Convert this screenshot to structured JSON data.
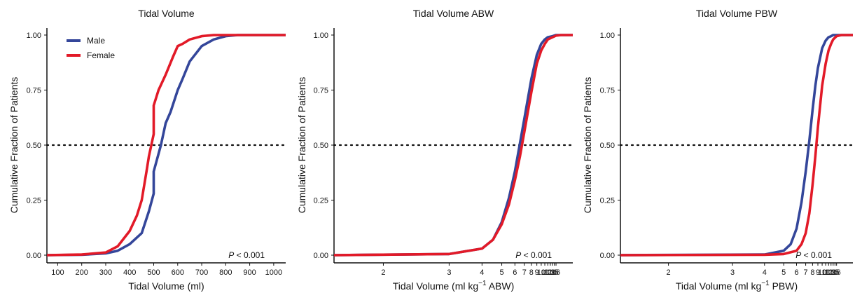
{
  "colors": {
    "male": "#34469a",
    "female": "#e21a28",
    "axis": "#111111"
  },
  "legend": {
    "items": [
      {
        "label": "Male",
        "color": "#34469a"
      },
      {
        "label": "Female",
        "color": "#e21a28"
      }
    ]
  },
  "chart_data": [
    {
      "type": "line",
      "title": "Tidal Volume",
      "xlabel": "Tidal Volume (ml)",
      "ylabel": "Cumulative Fraction of Patients",
      "x_scale": "linear",
      "xlim": [
        55,
        1050
      ],
      "ylim": [
        -0.02,
        1.05
      ],
      "x_ticks": [
        100,
        200,
        300,
        400,
        500,
        600,
        700,
        800,
        900,
        1000
      ],
      "y_ticks": [
        "0.00",
        "0.25",
        "0.50",
        "0.75",
        "1.00"
      ],
      "reference_line": {
        "y": 0.5,
        "style": "dotted"
      },
      "annotation": {
        "p": "P",
        "rest": " < 0.001"
      },
      "legend": "top-left",
      "series": [
        {
          "name": "Male",
          "color": "#34469a",
          "x": [
            55,
            200,
            300,
            350,
            400,
            450,
            480,
            500,
            500,
            530,
            550,
            570,
            600,
            620,
            650,
            700,
            750,
            800,
            850,
            900,
            1050
          ],
          "y": [
            0,
            0.002,
            0.008,
            0.02,
            0.05,
            0.1,
            0.2,
            0.28,
            0.38,
            0.5,
            0.6,
            0.65,
            0.75,
            0.8,
            0.88,
            0.95,
            0.98,
            0.995,
            1.0,
            1.0,
            1.0
          ]
        },
        {
          "name": "Female",
          "color": "#e21a28",
          "x": [
            55,
            200,
            300,
            350,
            400,
            430,
            450,
            470,
            480,
            500,
            500,
            520,
            550,
            580,
            600,
            620,
            650,
            700,
            750,
            800,
            1050
          ],
          "y": [
            0,
            0.003,
            0.012,
            0.04,
            0.11,
            0.18,
            0.25,
            0.38,
            0.45,
            0.55,
            0.68,
            0.75,
            0.82,
            0.9,
            0.95,
            0.96,
            0.98,
            0.995,
            1.0,
            1.0,
            1.0
          ]
        }
      ]
    },
    {
      "type": "line",
      "title": "Tidal Volume ABW",
      "xlabel_parts": [
        "Tidal Volume (ml kg",
        "−1",
        " ABW)"
      ],
      "ylabel": "Cumulative Fraction of Patients",
      "x_scale": "reciprocal",
      "xlim": [
        1.6,
        50
      ],
      "ylim": [
        -0.02,
        1.05
      ],
      "x_ticks": [
        2,
        3,
        4,
        5,
        6,
        7,
        8,
        9,
        10,
        11,
        12,
        13,
        14,
        15,
        16
      ],
      "y_ticks": [
        "0.00",
        "0.25",
        "0.50",
        "0.75",
        "1.00"
      ],
      "reference_line": {
        "y": 0.5,
        "style": "dotted"
      },
      "annotation": {
        "p": "P",
        "rest": " < 0.001"
      },
      "series": [
        {
          "name": "Male",
          "color": "#34469a",
          "x": [
            1.6,
            3,
            4,
            4.5,
            5,
            5.5,
            6,
            6.5,
            7,
            8,
            9,
            10,
            11,
            12,
            14,
            16,
            20,
            30,
            50
          ],
          "y": [
            0,
            0.005,
            0.03,
            0.07,
            0.15,
            0.26,
            0.38,
            0.51,
            0.62,
            0.8,
            0.91,
            0.96,
            0.98,
            0.99,
            0.995,
            1.0,
            1.0,
            1.0,
            1.0
          ]
        },
        {
          "name": "Female",
          "color": "#e21a28",
          "x": [
            1.6,
            3,
            4,
            4.5,
            5,
            5.5,
            6,
            6.5,
            7,
            8,
            9,
            10,
            11,
            12,
            14,
            16,
            20,
            30,
            50
          ],
          "y": [
            0,
            0.005,
            0.03,
            0.07,
            0.14,
            0.23,
            0.34,
            0.45,
            0.56,
            0.74,
            0.87,
            0.93,
            0.96,
            0.98,
            0.99,
            0.997,
            1.0,
            1.0,
            1.0
          ]
        }
      ]
    },
    {
      "type": "line",
      "title": "Tidal Volume PBW",
      "xlabel_parts": [
        "Tidal Volume (ml kg",
        "−1",
        " PBW)"
      ],
      "ylabel": "Cumulative Fraction of Patients",
      "x_scale": "reciprocal",
      "xlim": [
        1.6,
        50
      ],
      "ylim": [
        -0.02,
        1.05
      ],
      "x_ticks": [
        2,
        3,
        4,
        5,
        6,
        7,
        8,
        9,
        10,
        11,
        12,
        13,
        14,
        15,
        16
      ],
      "y_ticks": [
        "0.00",
        "0.25",
        "0.50",
        "0.75",
        "1.00"
      ],
      "reference_line": {
        "y": 0.5,
        "style": "dotted"
      },
      "annotation": {
        "p": "P",
        "rest": " < 0.001"
      },
      "series": [
        {
          "name": "Male",
          "color": "#34469a",
          "x": [
            1.6,
            4,
            5,
            5.5,
            6,
            6.5,
            7,
            7.5,
            8,
            8.5,
            9,
            10,
            11,
            12,
            13,
            14,
            16,
            20,
            50
          ],
          "y": [
            0,
            0.003,
            0.02,
            0.05,
            0.12,
            0.24,
            0.38,
            0.52,
            0.66,
            0.77,
            0.85,
            0.94,
            0.975,
            0.99,
            0.995,
            1.0,
            1.0,
            1.0,
            1.0
          ]
        },
        {
          "name": "Female",
          "color": "#e21a28",
          "x": [
            1.6,
            4,
            5,
            6,
            6.5,
            7,
            7.5,
            8,
            8.5,
            9,
            9.5,
            10,
            11,
            12,
            13,
            14,
            16,
            20,
            50
          ],
          "y": [
            0,
            0.002,
            0.005,
            0.02,
            0.05,
            0.1,
            0.19,
            0.32,
            0.45,
            0.58,
            0.68,
            0.77,
            0.87,
            0.93,
            0.96,
            0.98,
            0.995,
            1.0,
            1.0
          ]
        }
      ]
    }
  ]
}
